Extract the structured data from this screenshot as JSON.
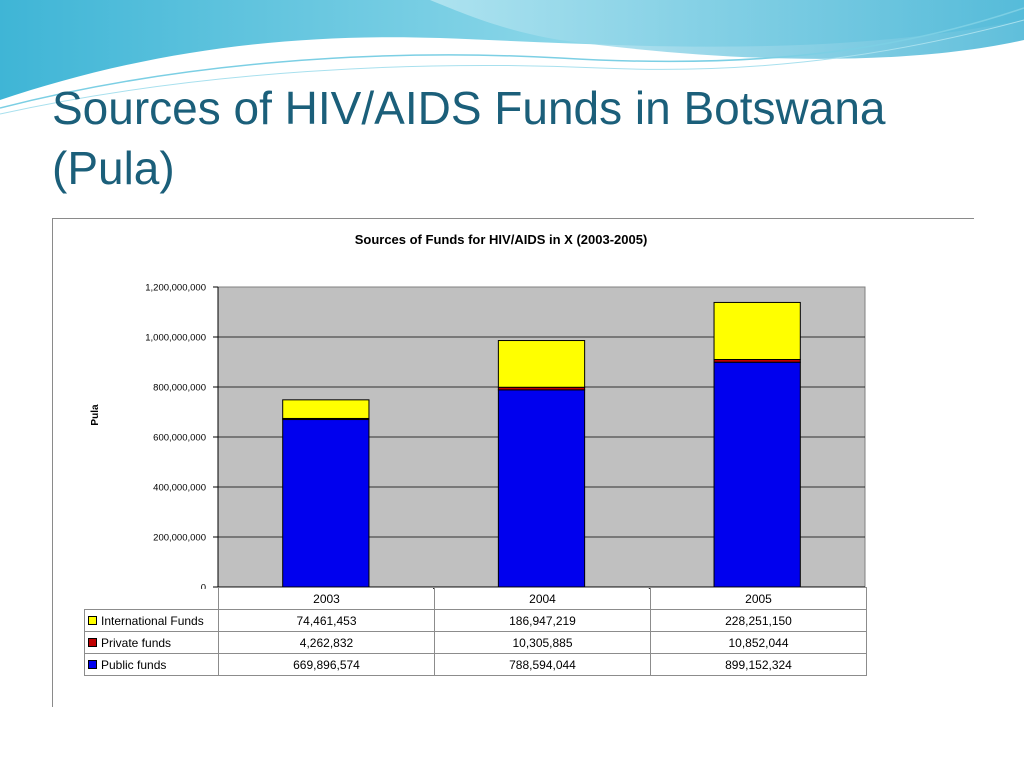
{
  "slide": {
    "title": "Sources of HIV/AIDS Funds in Botswana (Pula)"
  },
  "chart_data": {
    "type": "bar",
    "stacked": true,
    "title": "Sources of Funds for HIV/AIDS in X (2003-2005)",
    "xlabel": "",
    "ylabel": "Pula",
    "ylim": [
      0,
      1200000000
    ],
    "yticks": [
      "0",
      "200,000,000",
      "400,000,000",
      "600,000,000",
      "800,000,000",
      "1,000,000,000",
      "1,200,000,000"
    ],
    "ytick_values": [
      0,
      200000000,
      400000000,
      600000000,
      800000000,
      1000000000,
      1200000000
    ],
    "grid": true,
    "legend": "data-table",
    "categories": [
      "2003",
      "2004",
      "2005"
    ],
    "series": [
      {
        "name": "International Funds",
        "color": "#ffff00",
        "values": [
          74461453,
          186947219,
          228251150
        ],
        "labels": [
          "74,461,453",
          "186,947,219",
          "228,251,150"
        ]
      },
      {
        "name": "Private funds",
        "color": "#c00000",
        "values": [
          4262832,
          10305885,
          10852044
        ],
        "labels": [
          "4,262,832",
          "10,305,885",
          "10,852,044"
        ]
      },
      {
        "name": "Public funds",
        "color": "#0000ee",
        "values": [
          669896574,
          788594044,
          899152324
        ],
        "labels": [
          "669,896,574",
          "788,594,044",
          "899,152,324"
        ]
      }
    ],
    "plot_background": "#c0c0c0"
  }
}
